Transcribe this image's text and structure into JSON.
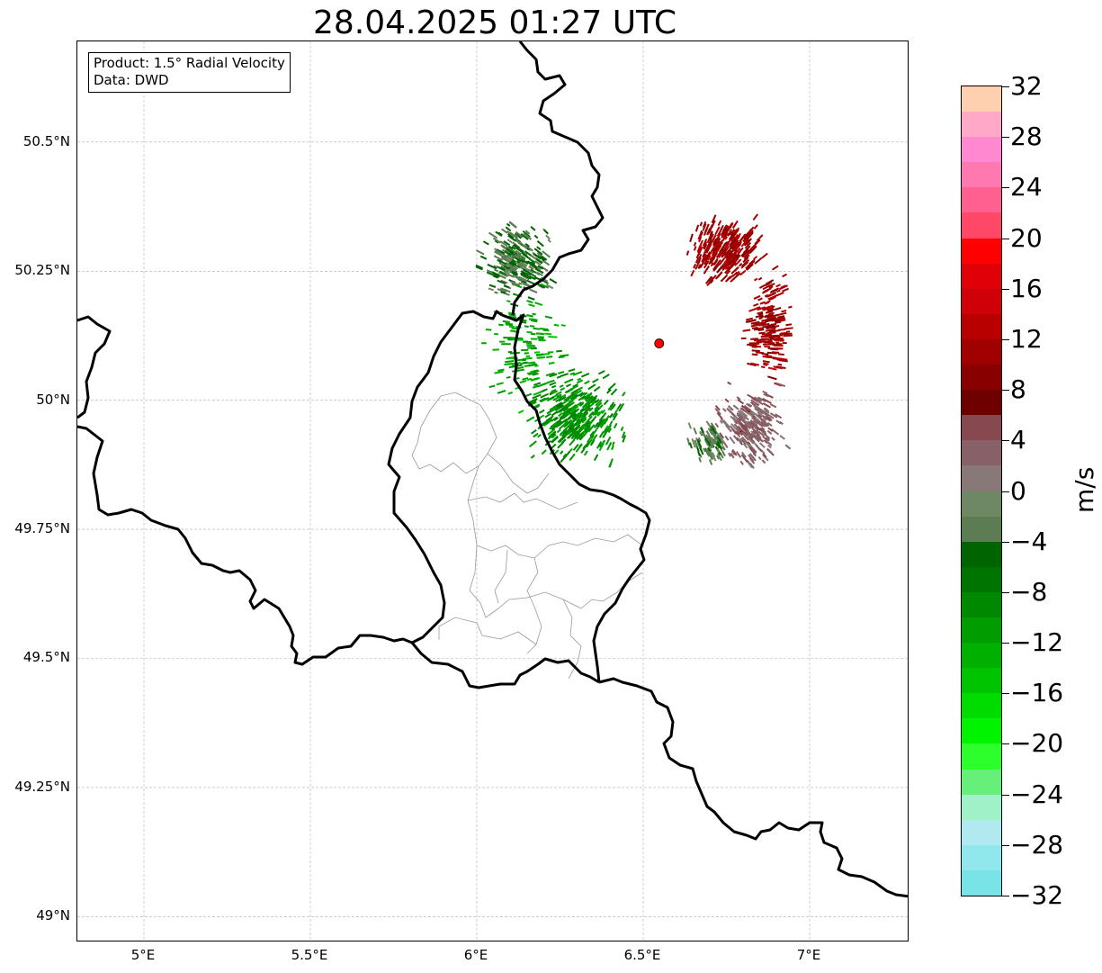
{
  "title": "28.04.2025 01:27 UTC",
  "info": {
    "product": "Product: 1.5° Radial Velocity",
    "data": "Data: DWD"
  },
  "axes": {
    "lon_range": [
      4.8,
      7.3
    ],
    "lat_range": [
      48.95,
      50.695
    ],
    "lon_ticks": [
      {
        "value": 5.0,
        "label": "5°E"
      },
      {
        "value": 5.5,
        "label": "5.5°E"
      },
      {
        "value": 6.0,
        "label": "6°E"
      },
      {
        "value": 6.5,
        "label": "6.5°E"
      },
      {
        "value": 7.0,
        "label": "7°E"
      }
    ],
    "lat_ticks": [
      {
        "value": 50.5,
        "label": "50.5°N"
      },
      {
        "value": 50.25,
        "label": "50.25°N"
      },
      {
        "value": 50.0,
        "label": "50°N"
      },
      {
        "value": 49.75,
        "label": "49.75°N"
      },
      {
        "value": 49.5,
        "label": "49.5°N"
      },
      {
        "value": 49.25,
        "label": "49.25°N"
      },
      {
        "value": 49.0,
        "label": "49°N"
      }
    ],
    "grid": true
  },
  "radar_site": {
    "lon": 6.548,
    "lat": 50.11,
    "color": "#ff0000"
  },
  "colorbar": {
    "unit": "m/s",
    "min": -32,
    "max": 32,
    "step": 2,
    "labels": [
      {
        "value": 32,
        "text": "32"
      },
      {
        "value": 28,
        "text": "28"
      },
      {
        "value": 24,
        "text": "24"
      },
      {
        "value": 20,
        "text": "20"
      },
      {
        "value": 16,
        "text": "16"
      },
      {
        "value": 12,
        "text": "12"
      },
      {
        "value": 8,
        "text": "8"
      },
      {
        "value": 4,
        "text": "4"
      },
      {
        "value": 0,
        "text": "0"
      },
      {
        "value": -4,
        "text": "−4"
      },
      {
        "value": -8,
        "text": "−8"
      },
      {
        "value": -12,
        "text": "−12"
      },
      {
        "value": -16,
        "text": "−16"
      },
      {
        "value": -20,
        "text": "−20"
      },
      {
        "value": -24,
        "text": "−24"
      },
      {
        "value": -28,
        "text": "−28"
      },
      {
        "value": -32,
        "text": "−32"
      }
    ],
    "colors_top_to_bottom": [
      "#ffd0b0",
      "#ffa8c8",
      "#ff88d0",
      "#ff78b0",
      "#ff6090",
      "#ff4868",
      "#ff0000",
      "#e00008",
      "#d00008",
      "#b80000",
      "#a00000",
      "#880000",
      "#6e0000",
      "#884850",
      "#886068",
      "#887878",
      "#6e8866",
      "#5c7c54",
      "#006400",
      "#007400",
      "#008800",
      "#009c00",
      "#00b000",
      "#00c400",
      "#00dc00",
      "#00f400",
      "#2cff2c",
      "#66f07a",
      "#a0f0c8",
      "#b0eaf0",
      "#90e8ec",
      "#78e4e8"
    ]
  },
  "radar_echoes": [
    {
      "name": "inbound-cluster-northwest",
      "lon": 6.12,
      "lat": 50.27,
      "rlon": 0.13,
      "rlat": 0.09,
      "velocity": -4,
      "count": 260
    },
    {
      "name": "inbound-cluster-southwest",
      "lon": 6.3,
      "lat": 49.97,
      "rlon": 0.17,
      "rlat": 0.11,
      "velocity": -10,
      "count": 380
    },
    {
      "name": "inbound-scatter-west",
      "lon": 6.15,
      "lat": 50.1,
      "rlon": 0.14,
      "rlat": 0.14,
      "velocity": -12,
      "count": 140
    },
    {
      "name": "outbound-cluster-north",
      "lon": 6.75,
      "lat": 50.29,
      "rlon": 0.14,
      "rlat": 0.08,
      "velocity": 11,
      "count": 300
    },
    {
      "name": "outbound-cluster-east",
      "lon": 6.88,
      "lat": 50.14,
      "rlon": 0.09,
      "rlat": 0.13,
      "velocity": 11,
      "count": 200
    },
    {
      "name": "near-zero-cluster-southeast",
      "lon": 6.82,
      "lat": 49.95,
      "rlon": 0.13,
      "rlat": 0.1,
      "velocity": 3,
      "count": 240
    },
    {
      "name": "near-zero-cluster-south",
      "lon": 6.7,
      "lat": 49.92,
      "rlon": 0.08,
      "rlat": 0.06,
      "velocity": -3,
      "count": 90
    }
  ]
}
